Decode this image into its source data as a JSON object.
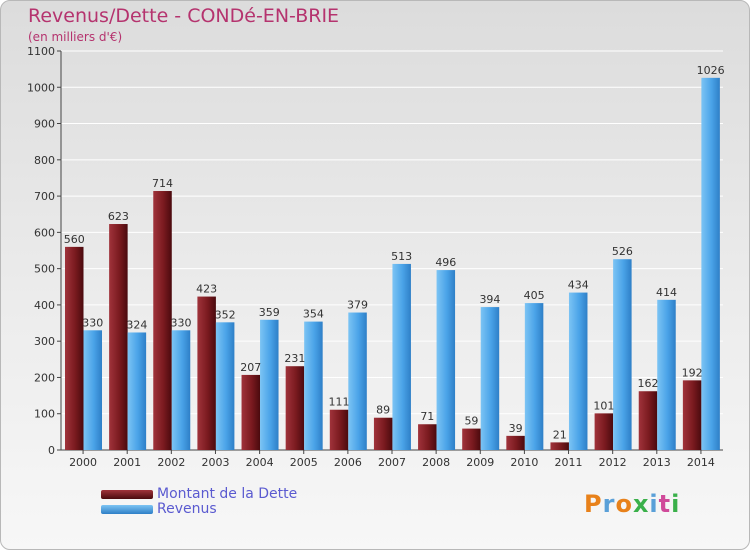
{
  "chart_data": {
    "type": "bar",
    "title": "Revenus/Dette - CONDé-EN-BRIE",
    "subtitle": "(en milliers d'€)",
    "categories": [
      "2000",
      "2001",
      "2002",
      "2003",
      "2004",
      "2005",
      "2006",
      "2007",
      "2008",
      "2009",
      "2010",
      "2011",
      "2012",
      "2013",
      "2014"
    ],
    "series": [
      {
        "name": "Montant de la Dette",
        "color": "#7a1a1f",
        "values": [
          560,
          623,
          714,
          423,
          207,
          231,
          111,
          89,
          71,
          59,
          39,
          21,
          101,
          162,
          192
        ]
      },
      {
        "name": "Revenus",
        "color": "#4aa3e8",
        "values": [
          330,
          324,
          330,
          352,
          359,
          354,
          379,
          513,
          496,
          394,
          405,
          434,
          526,
          414,
          1026
        ]
      }
    ],
    "ylim": [
      0,
      1100
    ],
    "yticks": [
      0,
      100,
      200,
      300,
      400,
      500,
      600,
      700,
      800,
      900,
      1000,
      1100
    ],
    "grid": true,
    "legend_position": "bottom-left"
  },
  "logo": {
    "text": "Proxiti",
    "colors": [
      "#e8811a",
      "#5aa0d8",
      "#e8811a",
      "#3ab04a",
      "#5aa0d8",
      "#d04a9a",
      "#3ab04a"
    ]
  }
}
